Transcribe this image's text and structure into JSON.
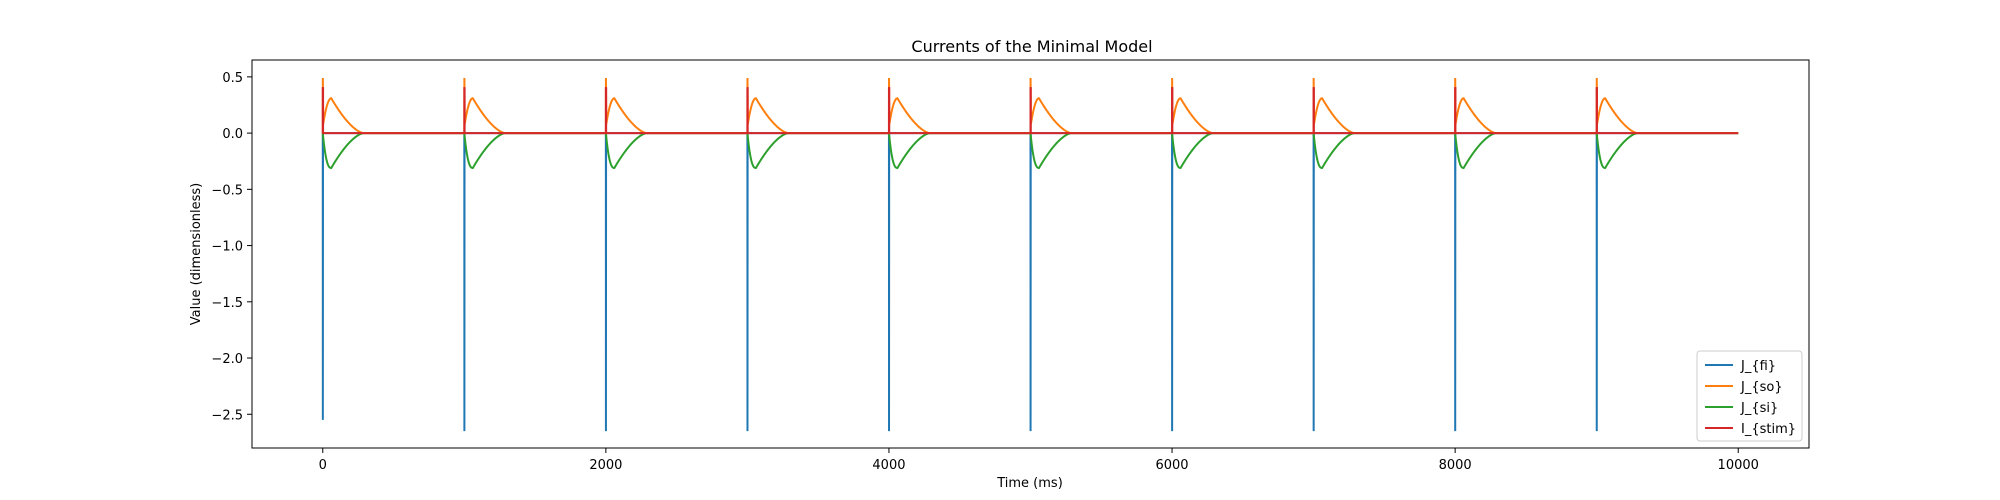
{
  "chart_data": {
    "type": "line",
    "title": "Currents of the Minimal Model",
    "xlabel": "Time (ms)",
    "ylabel": "Value (dimensionless)",
    "xlim": [
      -500,
      10500
    ],
    "ylim": [
      -2.8,
      0.65
    ],
    "xticks": [
      0,
      2000,
      4000,
      6000,
      8000,
      10000
    ],
    "xtick_labels": [
      "0",
      "2000",
      "4000",
      "6000",
      "8000",
      "10000"
    ],
    "yticks": [
      0.5,
      0.0,
      -0.5,
      -1.0,
      -1.5,
      -2.0,
      -2.5
    ],
    "ytick_labels": [
      "0.5",
      "0.0",
      "−0.5",
      "−1.0",
      "−1.5",
      "−2.0",
      "−2.5"
    ],
    "grid": false,
    "legend_position": "lower-right",
    "period_ms": 1000,
    "pulse_onsets_ms": [
      0,
      1000,
      2000,
      3000,
      4000,
      5000,
      6000,
      7000,
      8000,
      9000
    ],
    "x_end_ms": 10000,
    "series": [
      {
        "name": "J_{fi}",
        "color": "#1f77b4",
        "baseline": 0.0,
        "spike_minima": [
          -2.55,
          -2.65,
          -2.65,
          -2.65,
          -2.65,
          -2.65,
          -2.65,
          -2.65,
          -2.65,
          -2.65
        ]
      },
      {
        "name": "J_{so}",
        "color": "#ff7f0e",
        "baseline": 0.0,
        "spike_peak": 0.49,
        "plateau_peak": 0.31,
        "plateau_peak_time_ms": 60,
        "plateau_end_ms": 290
      },
      {
        "name": "J_{si}",
        "color": "#2ca02c",
        "baseline": 0.0,
        "trough": -0.31,
        "trough_time_ms": 60,
        "trough_end_ms": 290
      },
      {
        "name": "I_{stim}",
        "color": "#d62728",
        "baseline": 0.0,
        "pulse_value": 0.4,
        "pulse_duration_ms": 2
      }
    ]
  }
}
